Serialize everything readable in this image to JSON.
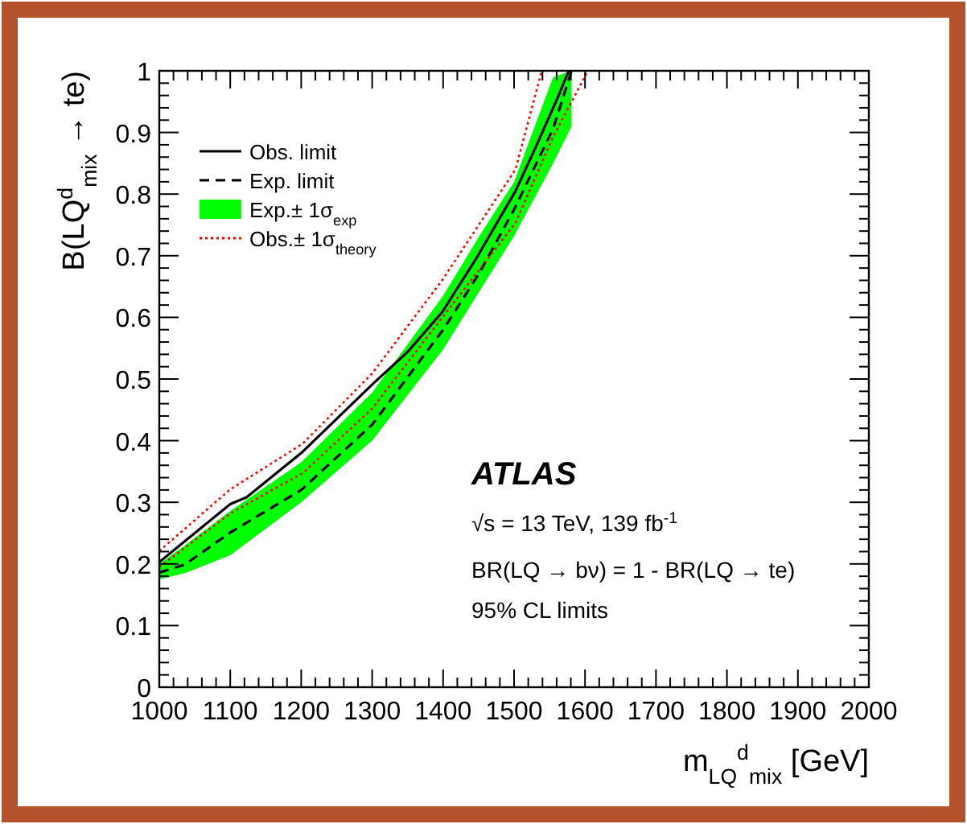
{
  "chart_data": {
    "type": "line",
    "xlabel": "m$_{LQ}$$^{d}$$_{mix}$ [GeV]",
    "ylabel": "B(LQ$^{d}$$_{mix}$ → te)",
    "xlim": [
      1000,
      2000
    ],
    "xticks": [
      1000,
      1100,
      1200,
      1300,
      1400,
      1500,
      1600,
      1700,
      1800,
      1900,
      2000
    ],
    "ylim": [
      0,
      1
    ],
    "yticks": [
      0,
      0.1,
      0.2,
      0.3,
      0.4,
      0.5,
      0.6,
      0.7,
      0.8,
      0.9,
      1
    ],
    "grid": false,
    "legend": "top left",
    "series": [
      {
        "name": "Obs. limit",
        "color": "#000000",
        "line_style": "solid",
        "x": [
          1000,
          1100,
          1123,
          1202,
          1300,
          1350,
          1399,
          1449,
          1502,
          1532,
          1562,
          1577
        ],
        "values": [
          0.203,
          0.297,
          0.308,
          0.382,
          0.491,
          0.544,
          0.609,
          0.7,
          0.805,
          0.88,
          0.958,
          1.0
        ]
      },
      {
        "name": "Exp. limit",
        "color": "#000000",
        "line_style": "dashed",
        "x": [
          1000,
          1036,
          1100,
          1200,
          1300,
          1400,
          1450,
          1500,
          1555,
          1581
        ],
        "values": [
          0.186,
          0.199,
          0.251,
          0.32,
          0.426,
          0.58,
          0.67,
          0.775,
          0.906,
          1.0
        ],
        "lower": [
          0.175,
          0.185,
          0.214,
          0.3,
          0.4,
          0.548,
          0.64,
          0.732,
          0.85,
          0.91
        ],
        "upper": [
          0.2,
          0.23,
          0.286,
          0.365,
          0.478,
          0.635,
          0.73,
          0.82,
          0.99,
          1.0
        ]
      },
      {
        "name": "Obs.± 1σ$_{theory}$",
        "color": "#ff0000",
        "line_style": "dotted",
        "x": [
          1000,
          1100,
          1202,
          1300,
          1399,
          1502,
          1539
        ],
        "values": [
          0.221,
          0.321,
          0.395,
          0.509,
          0.661,
          0.84,
          1.0
        ]
      },
      {
        "color": "#ff0000",
        "line_style": "dotted",
        "x": [
          1000,
          1100,
          1202,
          1300,
          1399,
          1502,
          1555,
          1604
        ],
        "values": [
          0.195,
          0.282,
          0.347,
          0.452,
          0.6,
          0.753,
          0.893,
          1.0
        ]
      }
    ],
    "annotations": [
      "Exp.± 1σ$_{exp}$",
      "ATLAS",
      "√s = 13 TeV, 139 fb$^{-1}$",
      "BR(LQ → bν) = 1 - BR(LQ → te)",
      "95% CL limits"
    ]
  }
}
